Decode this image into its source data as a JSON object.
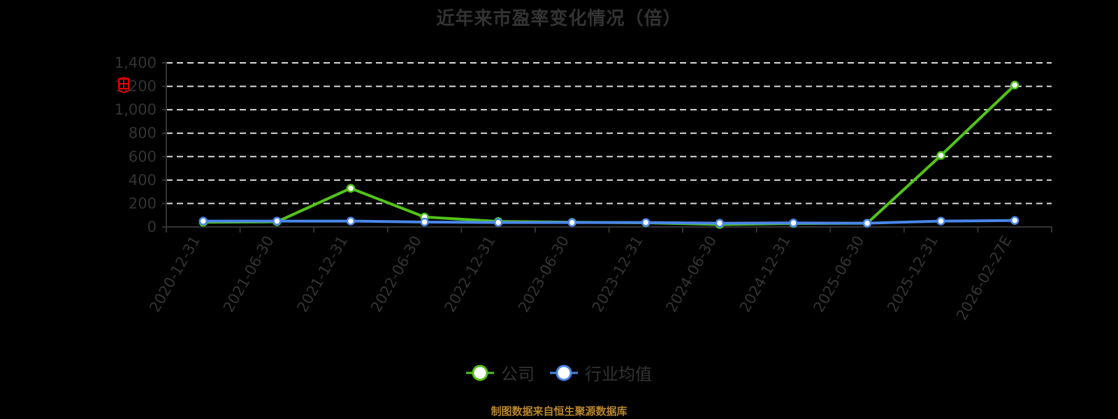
{
  "title": "近年来市盈率变化情况（倍）",
  "source_note": "制图数据来自恒生聚源数据库",
  "legend": {
    "items": [
      {
        "label": "公司",
        "color": "#52c41a",
        "icon": "circle-line-marker-icon"
      },
      {
        "label": "行业均值",
        "color": "#4a86e8",
        "icon": "circle-line-marker-icon"
      }
    ]
  },
  "y_axis": {
    "ticks": [
      "0",
      "200",
      "400",
      "600",
      "800",
      "1,000",
      "1,200",
      "1,400"
    ]
  },
  "x_axis": {
    "ticks": [
      "2020-12-31",
      "2021-06-30",
      "2021-12-31",
      "2022-06-30",
      "2022-12-31",
      "2023-06-30",
      "2023-12-31",
      "2024-06-30",
      "2024-12-31",
      "2025-06-30",
      "2025-12-31",
      "2026-02-27E"
    ]
  },
  "colors": {
    "company": "#52c41a",
    "industry": "#4a86e8",
    "grid": "#d9d9d9",
    "axis": "#333333",
    "stamp": "#e00000"
  },
  "chart_data": {
    "type": "line",
    "title": "近年来市盈率变化情况（倍）",
    "xlabel": "",
    "ylabel": "",
    "ylim": [
      0,
      1400
    ],
    "grid": true,
    "legend_position": "bottom",
    "categories": [
      "2020-12-31",
      "2021-06-30",
      "2021-12-31",
      "2022-06-30",
      "2022-12-31",
      "2023-06-30",
      "2023-12-31",
      "2024-06-30",
      "2024-12-31",
      "2025-06-30",
      "2025-12-31",
      "2026-02-27E"
    ],
    "series": [
      {
        "name": "公司",
        "values": [
          40,
          44,
          330,
          85,
          47,
          40,
          36,
          21,
          30,
          32,
          610,
          1210
        ]
      },
      {
        "name": "行业均值",
        "values": [
          50,
          50,
          50,
          42,
          38,
          38,
          38,
          32,
          34,
          32,
          50,
          55
        ]
      }
    ]
  }
}
